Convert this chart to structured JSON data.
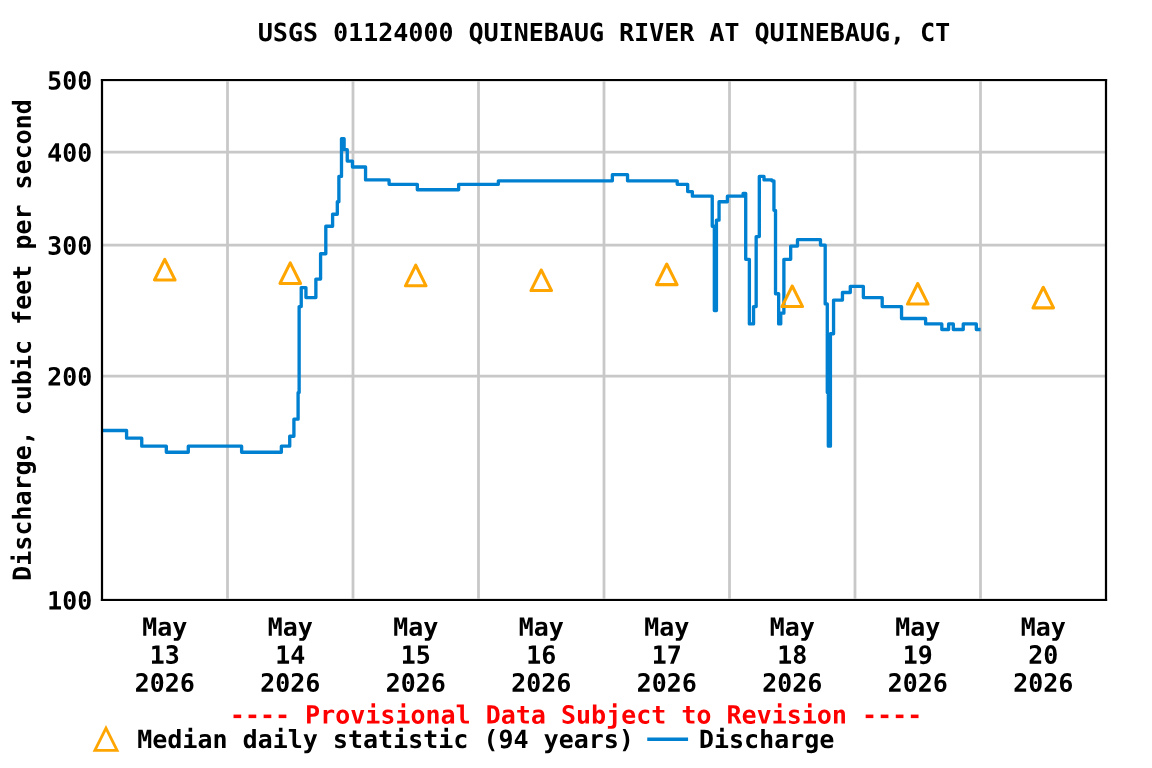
{
  "chart_data": {
    "type": "step",
    "title": "USGS 01124000 QUINEBAUG RIVER AT QUINEBAUG, CT",
    "ylabel": "Discharge, cubic feet per second",
    "log": true,
    "ylim": [
      100,
      500
    ],
    "yticks": [
      100,
      200,
      300,
      400,
      500
    ],
    "xlim": [
      "2026-05-13T00:00",
      "2026-05-21T00:00"
    ],
    "xticks": [
      {
        "value": "2026-05-13T12:00",
        "label": "May\n13\n2026"
      },
      {
        "value": "2026-05-14T12:00",
        "label": "May\n14\n2026"
      },
      {
        "value": "2026-05-15T12:00",
        "label": "May\n15\n2026"
      },
      {
        "value": "2026-05-16T12:00",
        "label": "May\n16\n2026"
      },
      {
        "value": "2026-05-17T12:00",
        "label": "May\n17\n2026"
      },
      {
        "value": "2026-05-18T12:00",
        "label": "May\n18\n2026"
      },
      {
        "value": "2026-05-19T12:00",
        "label": "May\n19\n2026"
      },
      {
        "value": "2026-05-20T12:00",
        "label": "May\n20\n2026"
      },
      {
        "value": "2026-05-14T00:00",
        "label": null
      },
      {
        "value": "2026-05-15T00:00",
        "label": null
      },
      {
        "value": "2026-05-16T00:00",
        "label": null
      },
      {
        "value": "2026-05-17T00:00",
        "label": null
      },
      {
        "value": "2026-05-18T00:00",
        "label": null
      },
      {
        "value": "2026-05-19T00:00",
        "label": null
      },
      {
        "value": "2026-05-20T00:00",
        "label": null
      }
    ],
    "grid": true,
    "legend": "bottom",
    "annotations": [
      "---- Provisional Data Subject to Revision ----"
    ],
    "series": [
      {
        "name": "Median daily statistic (94 years)",
        "type": "scatter",
        "marker": "triangle",
        "color": "#ffa500",
        "x": [
          "2026-05-13T12:00",
          "2026-05-14T12:00",
          "2026-05-15T12:00",
          "2026-05-16T12:00",
          "2026-05-17T12:00",
          "2026-05-18T12:00",
          "2026-05-19T12:00",
          "2026-05-20T12:00"
        ],
        "values": [
          278,
          275,
          273,
          269,
          274,
          256,
          258,
          255
        ]
      },
      {
        "name": "Discharge",
        "color": "#0080d0",
        "x": [
          "2026-05-13T00:00",
          "2026-05-13T04:42",
          "2026-05-13T07:36",
          "2026-05-13T12:18",
          "2026-05-13T16:30",
          "2026-05-14T02:42",
          "2026-05-14T10:18",
          "2026-05-14T11:54",
          "2026-05-14T12:42",
          "2026-05-14T13:30",
          "2026-05-14T13:42",
          "2026-05-14T14:06",
          "2026-05-14T15:00",
          "2026-05-14T16:54",
          "2026-05-14T17:48",
          "2026-05-14T18:48",
          "2026-05-14T20:06",
          "2026-05-14T21:00",
          "2026-05-14T21:18",
          "2026-05-14T21:48",
          "2026-05-14T22:18",
          "2026-05-14T22:54",
          "2026-05-14T23:54",
          "2026-05-15T02:24",
          "2026-05-15T06:54",
          "2026-05-15T12:18",
          "2026-05-15T20:12",
          "2026-05-16T03:48",
          "2026-05-17T01:36",
          "2026-05-17T04:30",
          "2026-05-17T14:00",
          "2026-05-17T16:00",
          "2026-05-17T16:54",
          "2026-05-17T20:42",
          "2026-05-17T21:06",
          "2026-05-17T21:30",
          "2026-05-17T22:00",
          "2026-05-17T23:36",
          "2026-05-18T02:36",
          "2026-05-18T03:06",
          "2026-05-18T03:48",
          "2026-05-18T04:36",
          "2026-05-18T05:06",
          "2026-05-18T05:42",
          "2026-05-18T06:36",
          "2026-05-18T08:06",
          "2026-05-18T08:30",
          "2026-05-18T08:48",
          "2026-05-18T09:24",
          "2026-05-18T09:48",
          "2026-05-18T10:24",
          "2026-05-18T11:42",
          "2026-05-18T13:00",
          "2026-05-18T17:24",
          "2026-05-18T18:18",
          "2026-05-18T18:42",
          "2026-05-18T18:54",
          "2026-05-18T19:18",
          "2026-05-18T19:54",
          "2026-05-18T21:36",
          "2026-05-18T23:06",
          "2026-05-19T01:36",
          "2026-05-19T05:12",
          "2026-05-19T08:54",
          "2026-05-19T13:30",
          "2026-05-19T16:36",
          "2026-05-19T17:54",
          "2026-05-19T18:48",
          "2026-05-19T20:42",
          "2026-05-19T23:12",
          "2026-05-19T23:42"
        ],
        "values": [
          169,
          165,
          161,
          158,
          161,
          158,
          161,
          166,
          175,
          190,
          248,
          263,
          255,
          270,
          292,
          318,
          330,
          343,
          371,
          417,
          403,
          389,
          382,
          367,
          362,
          356,
          362,
          366,
          373,
          366,
          362,
          354,
          349,
          318,
          245,
          324,
          343,
          349,
          352,
          287,
          235,
          248,
          308,
          371,
          367,
          366,
          334,
          258,
          235,
          243,
          287,
          299,
          305,
          300,
          250,
          190,
          161,
          228,
          253,
          259,
          264,
          255,
          248,
          239,
          235,
          231,
          235,
          231,
          235,
          231,
          231
        ]
      }
    ]
  }
}
